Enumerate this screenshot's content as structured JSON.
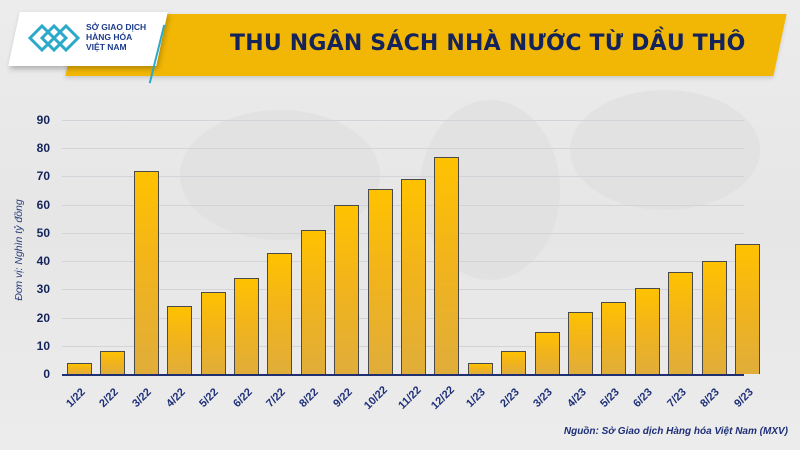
{
  "header": {
    "title": "THU NGÂN SÁCH NHÀ NƯỚC TỪ DẦU THÔ",
    "logo_lines": [
      "SỞ GIAO DỊCH",
      "HÀNG HÓA",
      "VIỆT NAM"
    ]
  },
  "source": "Nguồn: Sở Giao dịch Hàng hóa Việt Nam (MXV)",
  "colors": {
    "banner": "#f2b705",
    "bar": "#f2b41a",
    "text": "#14245a",
    "axis": "#1f2f70"
  },
  "chart_data": {
    "type": "bar",
    "title": "THU NGÂN SÁCH NHÀ NƯỚC TỪ DẦU THÔ",
    "xlabel": "",
    "ylabel": "Đơn vị: Nghìn tỷ đồng",
    "ylim": [
      0,
      90
    ],
    "yticks": [
      0,
      10,
      20,
      30,
      40,
      50,
      60,
      70,
      80,
      90
    ],
    "grid": true,
    "legend": null,
    "categories": [
      "1/22",
      "2/22",
      "3/22",
      "4/22",
      "5/22",
      "6/22",
      "7/22",
      "8/22",
      "9/22",
      "10/22",
      "11/22",
      "12/22",
      "1/23",
      "2/23",
      "3/23",
      "4/23",
      "5/23",
      "6/23",
      "7/23",
      "8/23",
      "9/23"
    ],
    "values": [
      4,
      8,
      72,
      24,
      29,
      34,
      43,
      51,
      60,
      65.5,
      69,
      77,
      4,
      8,
      15,
      22,
      25.5,
      30.5,
      36,
      40,
      46
    ],
    "annotations": [
      "Nguồn: Sở Giao dịch Hàng hóa Việt Nam (MXV)"
    ]
  }
}
